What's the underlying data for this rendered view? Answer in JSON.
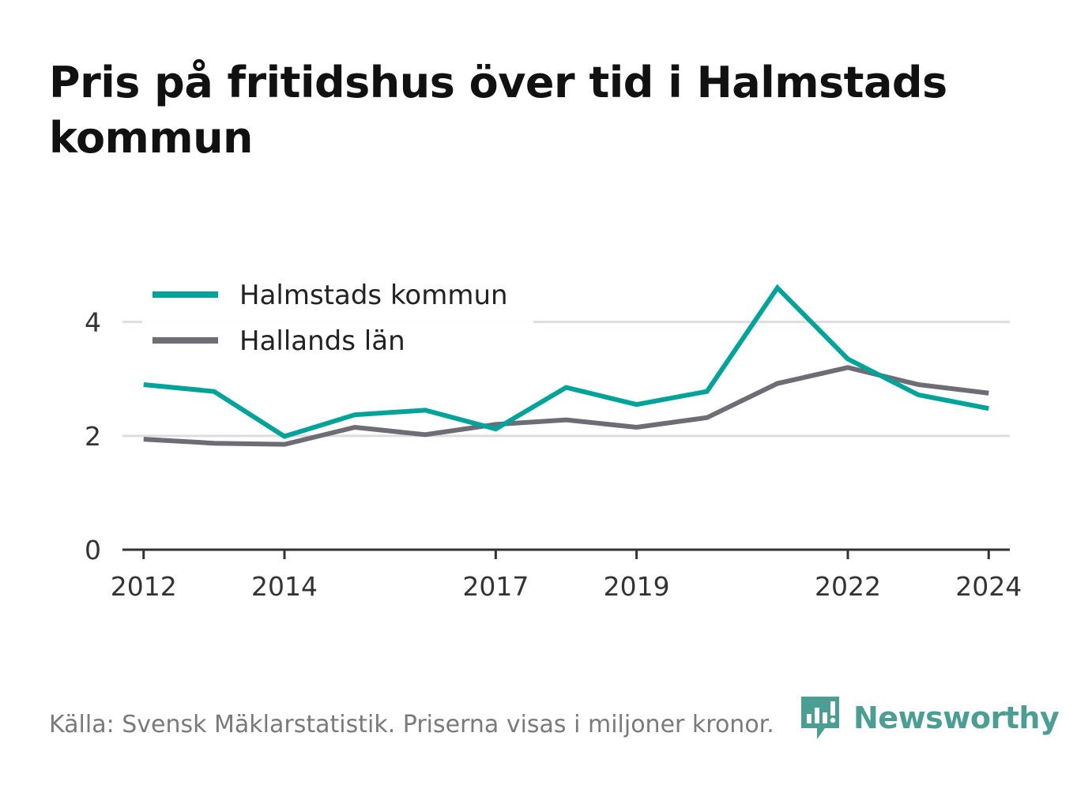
{
  "title": "Pris på fritidshus över tid i Halmstads kommun",
  "source": "Källa: Svensk Mäklarstatistik. Priserna visas i miljoner kronor.",
  "brand": {
    "name": "Newsworthy",
    "icon": "newsworthy-logo-icon",
    "color": "#4c9d93"
  },
  "chart_data": {
    "type": "line",
    "x": [
      2012,
      2013,
      2014,
      2015,
      2016,
      2017,
      2018,
      2019,
      2020,
      2021,
      2022,
      2023,
      2024
    ],
    "x_tick_labels": [
      "2012",
      "2014",
      "2017",
      "2019",
      "2022",
      "2024"
    ],
    "y_tick_labels": [
      "0",
      "2",
      "4"
    ],
    "ylim": [
      0,
      4.8
    ],
    "xlim": [
      2011.7,
      2024.3
    ],
    "grid": true,
    "legend_position": "top-left",
    "series": [
      {
        "name": "Halmstads kommun",
        "color": "#00a39a",
        "values": [
          2.9,
          2.78,
          1.99,
          2.37,
          2.45,
          2.12,
          2.85,
          2.55,
          2.78,
          4.6,
          3.35,
          2.72,
          2.48
        ]
      },
      {
        "name": "Hallands län",
        "color": "#6e6c75",
        "values": [
          1.94,
          1.87,
          1.85,
          2.15,
          2.02,
          2.2,
          2.28,
          2.15,
          2.32,
          2.92,
          3.2,
          2.9,
          2.75
        ]
      }
    ]
  }
}
